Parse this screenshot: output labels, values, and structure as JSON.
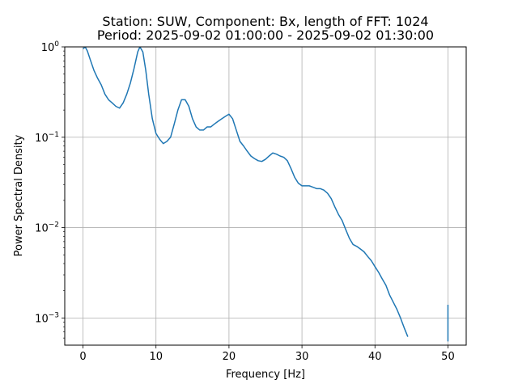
{
  "chart_data": {
    "type": "line",
    "title_line1": "Station: SUW, Component: Bx, length of FFT: 1024",
    "title_line2": "Period: 2025-09-02 01:00:00 - 2025-09-02 01:30:00",
    "xlabel": "Frequency [Hz]",
    "ylabel": "Power Spectral Density",
    "xlim": [
      -2.5,
      52.5
    ],
    "ylim": [
      0.0005,
      1
    ],
    "yscale": "log",
    "grid": true,
    "x_ticks": [
      {
        "value": 0,
        "label": "0"
      },
      {
        "value": 10,
        "label": "10"
      },
      {
        "value": 20,
        "label": "20"
      },
      {
        "value": 30,
        "label": "30"
      },
      {
        "value": 40,
        "label": "40"
      },
      {
        "value": 50,
        "label": "50"
      }
    ],
    "y_ticks": [
      {
        "value": 0.001,
        "base": "10",
        "exp": "−3"
      },
      {
        "value": 0.01,
        "base": "10",
        "exp": "−2"
      },
      {
        "value": 0.1,
        "base": "10",
        "exp": "−1"
      },
      {
        "value": 1,
        "base": "10",
        "exp": "0"
      }
    ],
    "series": [
      {
        "color": "#1f77b4",
        "x": [
          0,
          0.3,
          0.6,
          1,
          1.5,
          2,
          2.5,
          3,
          3.5,
          4,
          4.5,
          5,
          5.5,
          6,
          6.5,
          7,
          7.5,
          7.8,
          8.2,
          8.6,
          9,
          9.5,
          10,
          10.5,
          11,
          11.5,
          12,
          12.5,
          13,
          13.5,
          14,
          14.5,
          15,
          15.5,
          16,
          16.5,
          17,
          17.5,
          18,
          18.5,
          19,
          19.5,
          20,
          20.5,
          21,
          21.5,
          22,
          22.5,
          23,
          23.5,
          24,
          24.5,
          25,
          25.5,
          26,
          26.5,
          27,
          27.5,
          28,
          28.5,
          29,
          29.5,
          30,
          30.5,
          31,
          31.5,
          32,
          32.5,
          33,
          33.5,
          34,
          34.5,
          35,
          35.5,
          36,
          36.5,
          37,
          37.5,
          38,
          38.5,
          39,
          39.5,
          40,
          40.5,
          41,
          41.5,
          42,
          42.5,
          43,
          43.5,
          44,
          44.5
        ],
        "values": [
          0.95,
          1.0,
          0.9,
          0.72,
          0.55,
          0.45,
          0.38,
          0.3,
          0.26,
          0.24,
          0.22,
          0.21,
          0.24,
          0.3,
          0.4,
          0.58,
          0.88,
          1.0,
          0.88,
          0.55,
          0.3,
          0.16,
          0.11,
          0.095,
          0.085,
          0.09,
          0.1,
          0.14,
          0.2,
          0.26,
          0.26,
          0.22,
          0.16,
          0.13,
          0.12,
          0.12,
          0.13,
          0.13,
          0.14,
          0.15,
          0.16,
          0.17,
          0.18,
          0.16,
          0.12,
          0.09,
          0.08,
          0.07,
          0.062,
          0.058,
          0.055,
          0.054,
          0.057,
          0.062,
          0.067,
          0.065,
          0.062,
          0.06,
          0.055,
          0.045,
          0.036,
          0.031,
          0.029,
          0.029,
          0.029,
          0.028,
          0.027,
          0.027,
          0.026,
          0.024,
          0.021,
          0.017,
          0.014,
          0.012,
          0.0095,
          0.0076,
          0.0065,
          0.0062,
          0.0058,
          0.0054,
          0.0048,
          0.0043,
          0.0037,
          0.0032,
          0.0027,
          0.0023,
          0.0018,
          0.0015,
          0.00125,
          0.001,
          0.00078,
          0.00062
        ]
      },
      {
        "color": "#1f77b4",
        "x": [
          50,
          50,
          50,
          50
        ],
        "values": [
          0.00055,
          0.0009,
          0.0011,
          0.0014
        ]
      }
    ]
  }
}
